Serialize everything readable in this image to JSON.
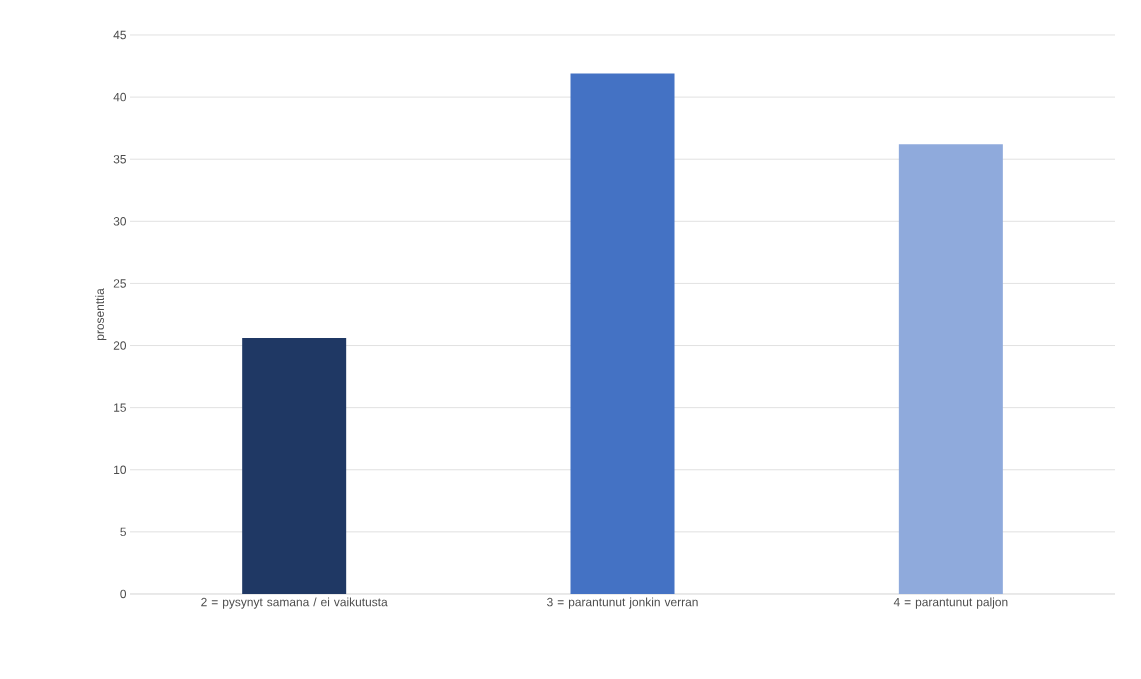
{
  "chart_data": {
    "type": "bar",
    "ylabel": "prosenttia",
    "categories": [
      "2 = pysynyt samana / ei vaikutusta",
      "3 = parantunut jonkin verran",
      "4 = parantunut paljon"
    ],
    "values": [
      20.6,
      41.9,
      36.2
    ],
    "colors": [
      "#1f3864",
      "#4472c4",
      "#8faadc"
    ],
    "ylim": [
      0,
      45
    ],
    "yticks": [
      0,
      5,
      10,
      15,
      20,
      25,
      30,
      35,
      40,
      45
    ],
    "grid": "y"
  }
}
